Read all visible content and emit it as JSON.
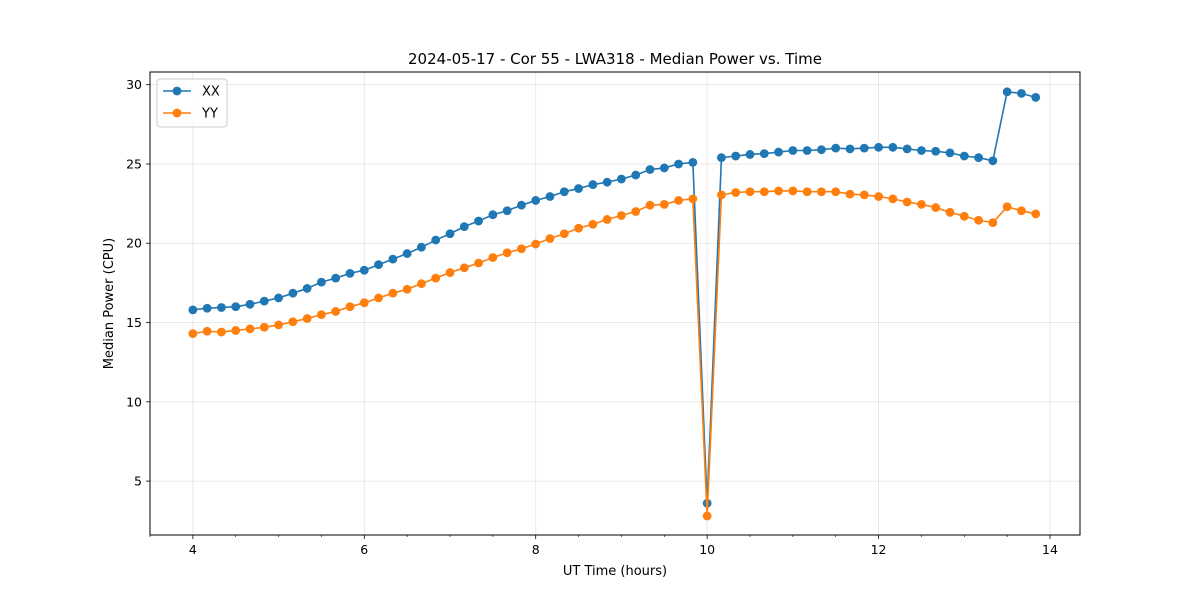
{
  "chart_data": {
    "type": "line",
    "title": "2024-05-17 - Cor 55 - LWA318 - Median Power vs. Time",
    "xlabel": "UT Time (hours)",
    "ylabel": "Median Power (CPU)",
    "xlim": [
      3.5,
      14.35
    ],
    "ylim": [
      1.6,
      30.8
    ],
    "xticks": [
      4,
      6,
      8,
      10,
      12,
      14
    ],
    "yticks": [
      5,
      10,
      15,
      20,
      25,
      30
    ],
    "grid": true,
    "legend_position": "top-left",
    "x": [
      4.0,
      4.1667,
      4.3333,
      4.5,
      4.6667,
      4.8333,
      5.0,
      5.1667,
      5.3333,
      5.5,
      5.6667,
      5.8333,
      6.0,
      6.1667,
      6.3333,
      6.5,
      6.6667,
      6.8333,
      7.0,
      7.1667,
      7.3333,
      7.5,
      7.6667,
      7.8333,
      8.0,
      8.1667,
      8.3333,
      8.5,
      8.6667,
      8.8333,
      9.0,
      9.1667,
      9.3333,
      9.5,
      9.6667,
      9.8333,
      10.0,
      10.1667,
      10.3333,
      10.5,
      10.6667,
      10.8333,
      11.0,
      11.1667,
      11.3333,
      11.5,
      11.6667,
      11.8333,
      12.0,
      12.1667,
      12.3333,
      12.5,
      12.6667,
      12.8333,
      13.0,
      13.1667,
      13.3333,
      13.5,
      13.6667,
      13.8333
    ],
    "series": [
      {
        "name": "XX",
        "color": "#1f77b4",
        "values": [
          15.8,
          15.9,
          15.95,
          16.0,
          16.15,
          16.35,
          16.55,
          16.85,
          17.15,
          17.55,
          17.8,
          18.1,
          18.3,
          18.65,
          19.0,
          19.35,
          19.75,
          20.2,
          20.6,
          21.05,
          21.4,
          21.8,
          22.05,
          22.4,
          22.7,
          22.95,
          23.25,
          23.45,
          23.7,
          23.85,
          24.05,
          24.3,
          24.65,
          24.75,
          25.0,
          25.1,
          3.6,
          25.4,
          25.5,
          25.6,
          25.65,
          25.75,
          25.85,
          25.85,
          25.9,
          26.0,
          25.95,
          26.0,
          26.05,
          26.05,
          25.95,
          25.85,
          25.8,
          25.7,
          25.5,
          25.4,
          25.2,
          29.55,
          29.45,
          29.2
        ]
      },
      {
        "name": "YY",
        "color": "#ff7f0e",
        "values": [
          14.3,
          14.45,
          14.4,
          14.5,
          14.6,
          14.7,
          14.85,
          15.05,
          15.25,
          15.5,
          15.7,
          16.0,
          16.25,
          16.55,
          16.85,
          17.1,
          17.45,
          17.8,
          18.15,
          18.45,
          18.75,
          19.1,
          19.4,
          19.65,
          19.95,
          20.3,
          20.6,
          20.95,
          21.2,
          21.5,
          21.75,
          22.0,
          22.4,
          22.45,
          22.7,
          22.8,
          2.8,
          23.05,
          23.2,
          23.25,
          23.25,
          23.3,
          23.3,
          23.25,
          23.25,
          23.25,
          23.1,
          23.05,
          22.95,
          22.8,
          22.6,
          22.45,
          22.25,
          21.95,
          21.7,
          21.45,
          21.3,
          22.3,
          22.05,
          21.85
        ]
      }
    ]
  }
}
